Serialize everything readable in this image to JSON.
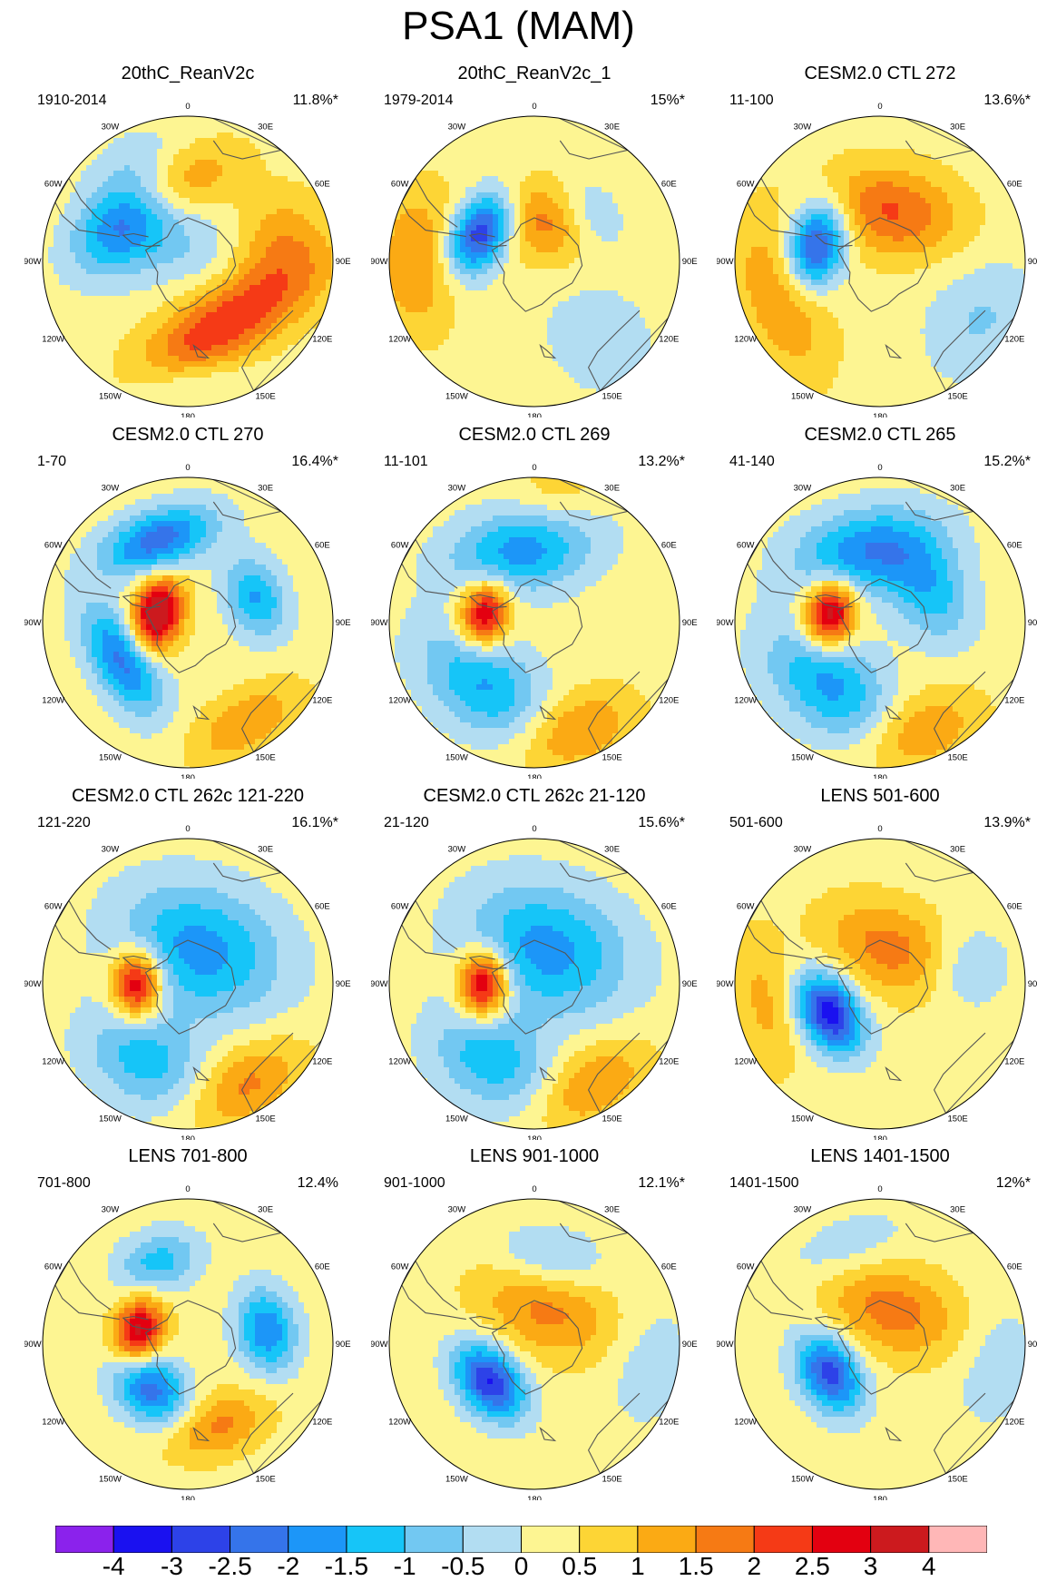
{
  "figure": {
    "title": "PSA1 (MAM)",
    "longitude_labels": [
      "0",
      "30E",
      "60E",
      "90E",
      "120E",
      "150E",
      "180",
      "150W",
      "120W",
      "90W",
      "60W",
      "30W"
    ]
  },
  "chart_data": {
    "type": "polar-contour-map",
    "title": "PSA1 (MAM)",
    "projection": "south-polar-stereographic",
    "colorbar": {
      "levels": [
        "-4",
        "-3",
        "-2.5",
        "-2",
        "-1.5",
        "-1",
        "-0.5",
        "0",
        "0.5",
        "1",
        "1.5",
        "2",
        "2.5",
        "3",
        "4"
      ],
      "colors": [
        "#8b22ec",
        "#1a11f0",
        "#2d42e8",
        "#3574ea",
        "#1c96f8",
        "#16c5f8",
        "#72c8f2",
        "#b2ddf2",
        "#fdf592",
        "#fdd535",
        "#fbaa14",
        "#f67a14",
        "#f53a16",
        "#e30010",
        "#cc1a1e",
        "#ffb7b7"
      ]
    },
    "panels": [
      {
        "title": "20thC_ReanV2c",
        "period": "1910-2014",
        "variance": "11.8%*",
        "blobs": [
          [
            -50,
            0.55,
            0.3,
            0.2,
            -3.0
          ],
          [
            0,
            0.1,
            0.32,
            0.2,
            -0.7
          ],
          [
            150,
            0.5,
            0.45,
            0.18,
            2.2
          ],
          [
            -20,
            0.55,
            0.35,
            0.16,
            1.8
          ],
          [
            80,
            0.65,
            0.25,
            0.25,
            1.2
          ],
          [
            180,
            0.85,
            0.3,
            0.12,
            -0.6
          ]
        ]
      },
      {
        "title": "20thC_ReanV2c_1",
        "period": "1979-2014",
        "variance": "15%*",
        "blobs": [
          [
            -60,
            0.42,
            0.22,
            0.14,
            -3.5
          ],
          [
            10,
            0.3,
            0.3,
            0.2,
            1.6
          ],
          [
            50,
            0.5,
            0.2,
            0.15,
            -1.2
          ],
          [
            -90,
            0.8,
            0.35,
            0.2,
            1.3
          ],
          [
            140,
            0.7,
            0.25,
            0.3,
            -0.6
          ]
        ]
      },
      {
        "title": "CESM2.0 CTL 272",
        "period": "11-100",
        "variance": "13.6%*",
        "blobs": [
          [
            -75,
            0.45,
            0.22,
            0.14,
            -3.2
          ],
          [
            10,
            0.35,
            0.35,
            0.22,
            1.8
          ],
          [
            -110,
            0.72,
            0.4,
            0.2,
            1.3
          ],
          [
            120,
            0.8,
            0.3,
            0.25,
            -0.8
          ]
        ]
      },
      {
        "title": "CESM2.0 CTL 270",
        "period": "1-70",
        "variance": "16.4%*",
        "blobs": [
          [
            -75,
            0.22,
            0.18,
            0.12,
            3.5
          ],
          [
            -20,
            0.6,
            0.28,
            0.14,
            -2.6
          ],
          [
            -120,
            0.52,
            0.28,
            0.14,
            -2.5
          ],
          [
            70,
            0.5,
            0.2,
            0.14,
            -1.8
          ],
          [
            150,
            0.8,
            0.3,
            0.15,
            1.2
          ]
        ]
      },
      {
        "title": "CESM2.0 CTL 269",
        "period": "11-101",
        "variance": "13.2%*",
        "blobs": [
          [
            -80,
            0.35,
            0.16,
            0.12,
            3.0
          ],
          [
            -10,
            0.5,
            0.35,
            0.2,
            -2.0
          ],
          [
            -140,
            0.55,
            0.35,
            0.22,
            -1.8
          ],
          [
            160,
            0.8,
            0.3,
            0.18,
            1.4
          ],
          [
            10,
            0.95,
            0.2,
            0.2,
            0.6
          ]
        ]
      },
      {
        "title": "CESM2.0 CTL 265",
        "period": "41-140",
        "variance": "15.2%*",
        "blobs": [
          [
            -80,
            0.35,
            0.16,
            0.12,
            3.4
          ],
          [
            -10,
            0.5,
            0.35,
            0.2,
            -2.2
          ],
          [
            -140,
            0.55,
            0.35,
            0.22,
            -1.9
          ],
          [
            60,
            0.4,
            0.25,
            0.18,
            -1.5
          ],
          [
            160,
            0.8,
            0.3,
            0.18,
            1.3
          ]
        ]
      },
      {
        "title": "CESM2.0 CTL 262c 121-220",
        "period": "121-220",
        "variance": "16.1%*",
        "blobs": [
          [
            -90,
            0.35,
            0.16,
            0.12,
            3.2
          ],
          [
            20,
            0.25,
            0.4,
            0.3,
            -2.0
          ],
          [
            -150,
            0.6,
            0.3,
            0.22,
            -1.5
          ],
          [
            150,
            0.8,
            0.3,
            0.18,
            1.4
          ]
        ]
      },
      {
        "title": "CESM2.0 CTL 262c 21-120",
        "period": "21-120",
        "variance": "15.6%*",
        "blobs": [
          [
            -90,
            0.35,
            0.16,
            0.12,
            3.3
          ],
          [
            20,
            0.25,
            0.4,
            0.3,
            -2.0
          ],
          [
            -150,
            0.6,
            0.3,
            0.22,
            -1.6
          ],
          [
            150,
            0.8,
            0.3,
            0.18,
            1.3
          ]
        ]
      },
      {
        "title": "LENS 501-600",
        "period": "501-600",
        "variance": "13.9%*",
        "blobs": [
          [
            -120,
            0.4,
            0.2,
            0.14,
            -3.6
          ],
          [
            20,
            0.25,
            0.35,
            0.22,
            1.5
          ],
          [
            -100,
            0.8,
            0.35,
            0.15,
            0.9
          ],
          [
            80,
            0.6,
            0.2,
            0.2,
            -1.0
          ]
        ]
      },
      {
        "title": "LENS 701-800",
        "period": "701-800",
        "variance": "12.4%",
        "blobs": [
          [
            -75,
            0.35,
            0.16,
            0.12,
            3.0
          ],
          [
            -140,
            0.4,
            0.2,
            0.15,
            -2.5
          ],
          [
            80,
            0.55,
            0.2,
            0.14,
            -2.2
          ],
          [
            -20,
            0.6,
            0.2,
            0.14,
            -1.5
          ],
          [
            160,
            0.6,
            0.25,
            0.15,
            1.4
          ]
        ]
      },
      {
        "title": "LENS 901-1000",
        "period": "901-1000",
        "variance": "12.1%*",
        "blobs": [
          [
            -130,
            0.4,
            0.2,
            0.14,
            -3.3
          ],
          [
            20,
            0.25,
            0.35,
            0.22,
            1.4
          ],
          [
            10,
            0.6,
            0.25,
            0.15,
            -1.0
          ],
          [
            100,
            0.8,
            0.3,
            0.2,
            -0.6
          ]
        ]
      },
      {
        "title": "LENS 1401-1500",
        "period": "1401-1500",
        "variance": "12%*",
        "blobs": [
          [
            -120,
            0.4,
            0.2,
            0.14,
            -3.0
          ],
          [
            20,
            0.25,
            0.35,
            0.22,
            1.5
          ],
          [
            -20,
            0.7,
            0.3,
            0.15,
            -0.7
          ],
          [
            100,
            0.8,
            0.3,
            0.2,
            -0.6
          ]
        ]
      }
    ]
  }
}
